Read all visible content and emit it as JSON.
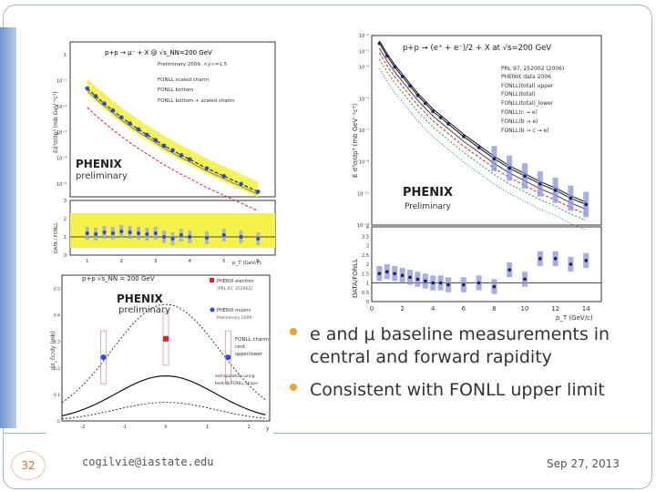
{
  "slide": {
    "page_number": "32",
    "email": "cogilvie@iastate.edu",
    "date": "Sep 27, 2013",
    "bullets": [
      "e and μ baseline measurements in central and forward rapidity",
      "Consistent with FONLL upper limit"
    ]
  },
  "colors": {
    "accent_orange": "#e8a33c",
    "frame_blue": "#9bb7d4",
    "phenix_red": "#c0392b"
  },
  "chart_data": [
    {
      "type": "line",
      "id": "mu-forward",
      "title": "p+p → μ⁻ + X @ √s_NN=200 GeV",
      "xlabel": "p_T (GeV/c)",
      "ylabel": "Ed³σ/dp³ (mb GeV⁻²c³)",
      "ratio_ylabel": "DATA / FONLL",
      "legend": [
        "Preliminary 2009, <y>=1.5",
        "FONLL scaled charm",
        "FONLL bottom",
        "FONLL bottom + scaled charm"
      ],
      "logo_text": "PHENIX",
      "logo_sub": "preliminary",
      "x_ticks": [
        "1",
        "2",
        "3",
        "4",
        "5",
        "6"
      ],
      "y_ticks": [
        "10⁻⁵",
        "10⁻⁴",
        "10⁻³",
        "10⁻²",
        "10⁻¹",
        "1"
      ],
      "ratio_ticks": [
        "0",
        "1",
        "2",
        "3"
      ],
      "data_x": [
        1.0,
        1.25,
        1.5,
        1.75,
        2.0,
        2.25,
        2.5,
        2.75,
        3.0,
        3.25,
        3.5,
        3.75,
        4.0,
        4.5,
        5.0,
        5.5,
        6.0
      ],
      "data_y": [
        0.05,
        0.025,
        0.013,
        0.007,
        0.0038,
        0.0022,
        0.0013,
        0.0008,
        0.0005,
        0.0003,
        0.0002,
        0.00013,
        9e-05,
        4e-05,
        2e-05,
        1e-05,
        5e-06
      ],
      "ratio_y": [
        1.2,
        1.15,
        1.25,
        1.2,
        1.3,
        1.25,
        1.2,
        1.15,
        1.2,
        1.0,
        0.9,
        1.1,
        1.0,
        0.95,
        1.1,
        1.0,
        0.9
      ]
    },
    {
      "type": "line",
      "id": "electron-central",
      "title": "p+p → (e⁺ + e⁻)/2 + X at √s=200 GeV",
      "xlabel": "p_T (GeV/c)",
      "ylabel": "E d³σ/dp³ (mb GeV⁻²c³)",
      "ratio_ylabel": "DATA/FONLL",
      "legend": [
        "PRL 97, 252002 (2006)",
        "PHENIX data 2006",
        "FONLL(total) upper",
        "FONLL(total)",
        "FONLL(total)_lower",
        "FONLL(c → e)",
        "FONLL(b → e)",
        "FONLL(b → c → e)"
      ],
      "logo_text": "PHENIX",
      "logo_sub": "Preliminary",
      "x_ticks": [
        "0",
        "2",
        "4",
        "6",
        "8",
        "10",
        "12",
        "14"
      ],
      "y_ticks": [
        "10⁻²",
        "1",
        "10⁻¹",
        "10⁻³",
        "10⁻⁵",
        "10⁻⁷",
        "10⁻⁹",
        "10⁻¹¹",
        "10⁻¹³"
      ],
      "ratio_ticks": [
        "0",
        "0.5",
        "1",
        "1.5",
        "2",
        "2.5",
        "3",
        "3.5",
        "4"
      ],
      "data_x": [
        0.5,
        1,
        1.5,
        2,
        2.5,
        3,
        3.5,
        4,
        4.5,
        5,
        6,
        7,
        8,
        9,
        10,
        11,
        12,
        13,
        14
      ],
      "data_y": [
        -1.5,
        -2.3,
        -3.0,
        -3.6,
        -4.2,
        -4.8,
        -5.3,
        -5.8,
        -6.2,
        -6.6,
        -7.4,
        -8.1,
        -8.8,
        -9.4,
        -9.9,
        -10.4,
        -10.8,
        -11.3,
        -11.7
      ],
      "ratio_y": [
        1.5,
        1.6,
        1.5,
        1.4,
        1.3,
        1.2,
        1.1,
        1.0,
        1.0,
        0.9,
        0.9,
        1.0,
        0.8,
        1.7,
        1.2,
        2.3,
        2.3,
        2.0,
        2.2
      ]
    },
    {
      "type": "scatter",
      "id": "rapidity",
      "title": "p+p √s_NN = 200 GeV",
      "xlabel": "y",
      "ylabel": "dσ_c̅c/dy (mb)",
      "legend": [
        "PHENIX electron",
        "(PRL 97, 252002)",
        "PHENIX muons",
        "Preliminary 2009"
      ],
      "annotation": [
        "FONLL charm",
        "cent.",
        "upper/lower",
        "extrapolation using",
        "best-fit FONLL shape"
      ],
      "logo_text": "PHENIX",
      "logo_sub": "preliminary",
      "x_ticks": [
        "-2",
        "-1",
        "0",
        "1",
        "2"
      ],
      "y_ticks": [
        "0",
        "0.1",
        "0.2",
        "0.3",
        "0.4",
        "0.5"
      ],
      "points": [
        {
          "series": "electron",
          "x": 0.0,
          "y": 0.31,
          "color": "#d62828"
        },
        {
          "series": "muon",
          "x": -1.5,
          "y": 0.24,
          "color": "#2a4bd7"
        },
        {
          "series": "muon",
          "x": 1.5,
          "y": 0.24,
          "color": "#2a4bd7"
        }
      ]
    }
  ]
}
